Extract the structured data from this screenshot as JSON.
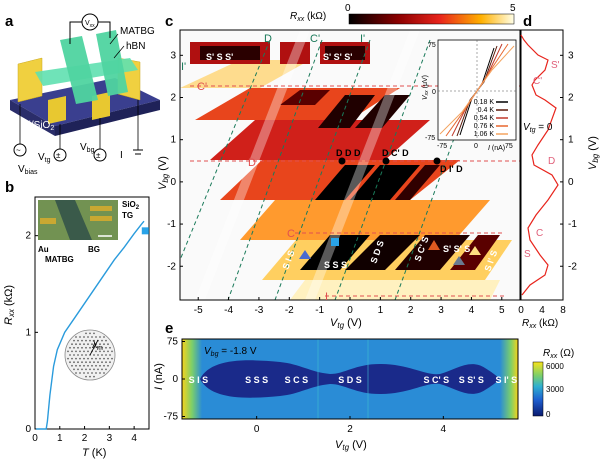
{
  "panels": {
    "a": {
      "letter": "a",
      "labels": {
        "vxx": "V",
        "vxx_sub": "xx",
        "matbg": "MATBG",
        "hbn": "hBN",
        "substrate": "Si/SiO",
        "substrate_sub": "2",
        "vbias": "V",
        "vbias_sub": "bias",
        "vtg": "V",
        "vtg_sub": "tg",
        "vbg": "V",
        "vbg_sub": "bg",
        "current": "I"
      }
    },
    "b": {
      "letter": "b",
      "ylabel": "R",
      "ylabel_sub": "xx",
      "ylabel_unit": " (kΩ)",
      "xlabel": "T",
      "xlabel_unit": " (K)",
      "yticks": [
        "0",
        "1",
        "2"
      ],
      "xticks": [
        "0",
        "1",
        "2",
        "3",
        "4"
      ],
      "inset_labels": {
        "sio2": "SiO",
        "sio2_sub": "2",
        "tg": "TG",
        "au": "Au",
        "bg": "BG",
        "matbg": "MATBG",
        "lambda": "λ",
        "lambda_sub": "m"
      },
      "curve": [
        [
          0.05,
          0
        ],
        [
          0.45,
          0
        ],
        [
          0.5,
          0.08
        ],
        [
          0.6,
          0.35
        ],
        [
          0.75,
          0.65
        ],
        [
          0.9,
          0.82
        ],
        [
          1.2,
          1.0
        ],
        [
          1.6,
          1.15
        ],
        [
          2.0,
          1.3
        ],
        [
          2.4,
          1.45
        ],
        [
          2.8,
          1.6
        ],
        [
          3.2,
          1.75
        ],
        [
          3.6,
          1.88
        ],
        [
          4.0,
          2.02
        ],
        [
          4.3,
          2.12
        ],
        [
          4.4,
          2.15
        ]
      ],
      "marker": [
        4.45,
        2.05
      ],
      "marker_color": "#29a3e8",
      "line_color": "#2a9bdc"
    },
    "c": {
      "letter": "c",
      "colorbar_label": "R",
      "colorbar_sub": "xx",
      "colorbar_unit": " (kΩ)",
      "colorbar_min": "0",
      "colorbar_max": "5",
      "xlabel": "V",
      "xlabel_sub": "tg",
      "xlabel_unit": " (V)",
      "ylabel": "V",
      "ylabel_sub": "bg",
      "ylabel_unit": " (V)",
      "xticks": [
        "-5",
        "-4",
        "-3",
        "-2",
        "-1",
        "0",
        "1",
        "2",
        "3",
        "4",
        "5"
      ],
      "yticks": [
        "-2",
        "-1",
        "0",
        "1",
        "2",
        "3"
      ],
      "diag_labels": [
        "D",
        "C'",
        "I'"
      ],
      "row_labels": {
        "c_prime": "C'",
        "d": "D",
        "c": "C",
        "i": "I",
        "i_prime": "I'"
      },
      "state_labels": [
        "S' S S'",
        "S' S' S'",
        "D D D",
        "D C' D",
        "D I' D",
        "S I S",
        "S S S",
        "S D S",
        "S C' S",
        "S' S' S",
        "S I' S"
      ],
      "inset": {
        "ylabel": "V",
        "ylabel_sub": "xx",
        "ylabel_unit": " (μV)",
        "xlabel": "I",
        "xlabel_unit": " (nA)",
        "yticks": [
          "75",
          "0",
          "-75"
        ],
        "xticks": [
          "-75",
          "0",
          "75"
        ],
        "legend": [
          "0.18 K",
          "0.4 K",
          "0.54 K",
          "0.76 K",
          "1.06 K"
        ],
        "legend_colors": [
          "#000000",
          "#5a1a0a",
          "#c0392b",
          "#e8672e",
          "#f4a460"
        ]
      }
    },
    "d": {
      "letter": "d",
      "annotation": "V",
      "annotation_sub": "tg",
      "annotation_val": " = 0",
      "ylabel": "V",
      "ylabel_sub": "bg",
      "ylabel_unit": " (V)",
      "xlabel": "R",
      "xlabel_sub": "xx",
      "xlabel_unit": " (kΩ)",
      "xticks": [
        "0",
        "4",
        "8"
      ],
      "yticks": [
        "3",
        "2",
        "1",
        "0",
        "-1",
        "-2"
      ],
      "markers": [
        "S'",
        "C'",
        "D",
        "C",
        "S"
      ],
      "line_color": "#e8241c",
      "marker_color": "#e0607a"
    },
    "e": {
      "letter": "e",
      "annotation": "V",
      "annotation_sub": "bg",
      "annotation_val": " = -1.8 V",
      "ylabel": "I",
      "ylabel_unit": " (nA)",
      "xlabel": "V",
      "xlabel_sub": "tg",
      "xlabel_unit": " (V)",
      "yticks": [
        "75",
        "0",
        "-75"
      ],
      "xticks": [
        "0",
        "2",
        "4"
      ],
      "colorbar_label": "R",
      "colorbar_sub": "xx",
      "colorbar_unit": " (Ω)",
      "colorbar_ticks": [
        "6000",
        "3000",
        "0"
      ],
      "state_labels": [
        "S I S",
        "S S S",
        "S C S",
        "S D S",
        "S C' S",
        "S S' S",
        "S I' S"
      ]
    }
  }
}
